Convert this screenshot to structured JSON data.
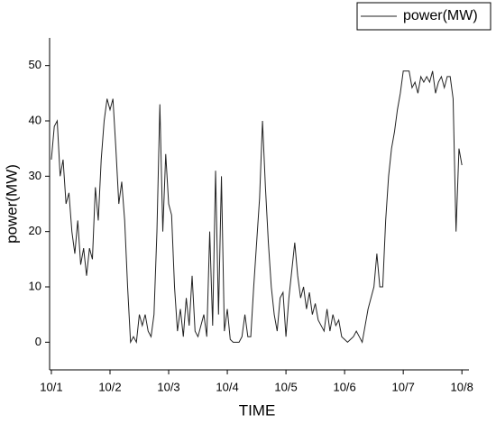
{
  "chart_data": {
    "type": "line",
    "xlabel": "TIME",
    "ylabel": "power(MW)",
    "xlim": [
      0.97,
      8.12
    ],
    "ylim": [
      -5,
      55
    ],
    "xticks": [
      {
        "value": 1,
        "label": "10/1"
      },
      {
        "value": 2,
        "label": "10/2"
      },
      {
        "value": 3,
        "label": "10/3"
      },
      {
        "value": 4,
        "label": "10/4"
      },
      {
        "value": 5,
        "label": "10/5"
      },
      {
        "value": 6,
        "label": "10/6"
      },
      {
        "value": 7,
        "label": "10/7"
      },
      {
        "value": 8,
        "label": "10/8"
      }
    ],
    "yticks": [
      0,
      10,
      20,
      30,
      40,
      50
    ],
    "legend": "upper right",
    "x": [
      1,
      1.05,
      1.1,
      1.15,
      1.2,
      1.25,
      1.3,
      1.35,
      1.4,
      1.45,
      1.5,
      1.55,
      1.6,
      1.65,
      1.7,
      1.75,
      1.8,
      1.85,
      1.9,
      1.95,
      2,
      2.05,
      2.1,
      2.15,
      2.2,
      2.25,
      2.3,
      2.35,
      2.4,
      2.45,
      2.5,
      2.55,
      2.6,
      2.65,
      2.7,
      2.75,
      2.8,
      2.85,
      2.9,
      2.95,
      3,
      3.05,
      3.1,
      3.15,
      3.2,
      3.25,
      3.3,
      3.35,
      3.4,
      3.45,
      3.5,
      3.55,
      3.6,
      3.65,
      3.7,
      3.75,
      3.8,
      3.85,
      3.9,
      3.95,
      4,
      4.05,
      4.1,
      4.15,
      4.2,
      4.25,
      4.3,
      4.35,
      4.4,
      4.45,
      4.5,
      4.55,
      4.6,
      4.65,
      4.7,
      4.75,
      4.8,
      4.85,
      4.9,
      4.95,
      5,
      5.05,
      5.1,
      5.15,
      5.2,
      5.25,
      5.3,
      5.35,
      5.4,
      5.45,
      5.5,
      5.55,
      5.6,
      5.65,
      5.7,
      5.75,
      5.8,
      5.85,
      5.9,
      5.95,
      6,
      6.05,
      6.1,
      6.15,
      6.2,
      6.25,
      6.3,
      6.35,
      6.4,
      6.45,
      6.5,
      6.55,
      6.6,
      6.65,
      6.7,
      6.75,
      6.8,
      6.85,
      6.9,
      6.95,
      7,
      7.05,
      7.1,
      7.15,
      7.2,
      7.25,
      7.3,
      7.35,
      7.4,
      7.45,
      7.5,
      7.55,
      7.6,
      7.65,
      7.7,
      7.75,
      7.8,
      7.85,
      7.9,
      7.95,
      8
    ],
    "series": [
      {
        "name": "power(MW)",
        "color": "#222222",
        "values": [
          33,
          39,
          40,
          30,
          33,
          25,
          27,
          20,
          16,
          22,
          14,
          17,
          12,
          17,
          15,
          28,
          22,
          33,
          40,
          44,
          42,
          44,
          35,
          25,
          29,
          22,
          10,
          0,
          1,
          0,
          5,
          3,
          5,
          2,
          1,
          5,
          20,
          43,
          20,
          34,
          25,
          23,
          10,
          2,
          6,
          1,
          8,
          3,
          12,
          2,
          1,
          3,
          5,
          1,
          20,
          3,
          31,
          5,
          30,
          2,
          6,
          0.5,
          0,
          0,
          0,
          1,
          5,
          1,
          1,
          10,
          18,
          26,
          40,
          28,
          18,
          10,
          5,
          2,
          8,
          9,
          1,
          8,
          13,
          18,
          12,
          8,
          10,
          6,
          9,
          5,
          7,
          4,
          3,
          2,
          6,
          2,
          5,
          3,
          4,
          1,
          0.5,
          0,
          0.5,
          1,
          2,
          1,
          0,
          3,
          6,
          8,
          10,
          16,
          10,
          10,
          22,
          30,
          35,
          38,
          42,
          45,
          49,
          49,
          49,
          46,
          47,
          45,
          48,
          47,
          48,
          47,
          49,
          45,
          47,
          48,
          46,
          48,
          48,
          44,
          20,
          35,
          32
        ]
      }
    ]
  }
}
